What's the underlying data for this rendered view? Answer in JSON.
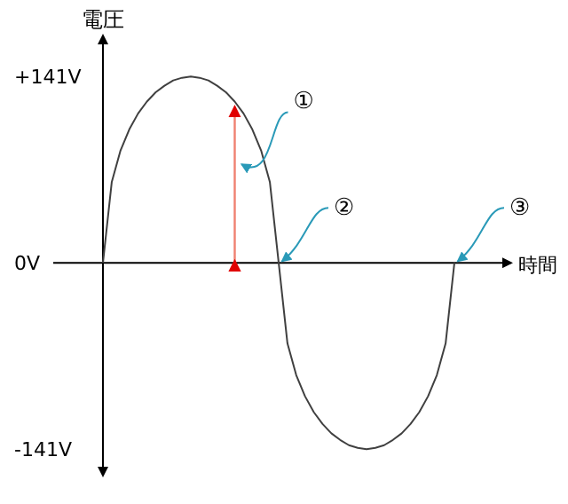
{
  "chart_data": {
    "type": "line",
    "xlabel": "時間",
    "ylabel": "電圧",
    "categories": [
      null,
      null,
      null,
      null,
      null,
      null,
      null,
      null,
      null,
      null,
      null,
      null,
      null,
      null,
      null,
      null,
      null,
      null,
      null,
      null,
      null,
      null,
      null,
      null,
      null,
      null,
      null,
      null,
      null,
      null,
      null,
      null,
      null,
      null,
      null,
      null,
      null,
      null,
      null,
      null,
      null
    ],
    "series": [
      {
        "color": "#404040",
        "values": [
          0,
          61,
          85,
          101,
          113,
          122,
          129,
          134,
          138,
          140,
          141,
          140,
          138,
          134,
          129,
          122,
          113,
          101,
          85,
          61,
          0,
          -61,
          -85,
          -101,
          -113,
          -122,
          -129,
          -134,
          -138,
          -140,
          -141,
          -140,
          -138,
          -134,
          -129,
          -122,
          -113,
          -101,
          -85,
          -61,
          0
        ]
      }
    ],
    "ylim": [
      -161,
      172
    ],
    "yticks": [
      {
        "value": 141,
        "label": "+141V"
      },
      {
        "value": 0,
        "label": "0V"
      },
      {
        "value": -141,
        "label": "-141V"
      }
    ],
    "annotations": [
      "①",
      "②",
      "③"
    ]
  }
}
